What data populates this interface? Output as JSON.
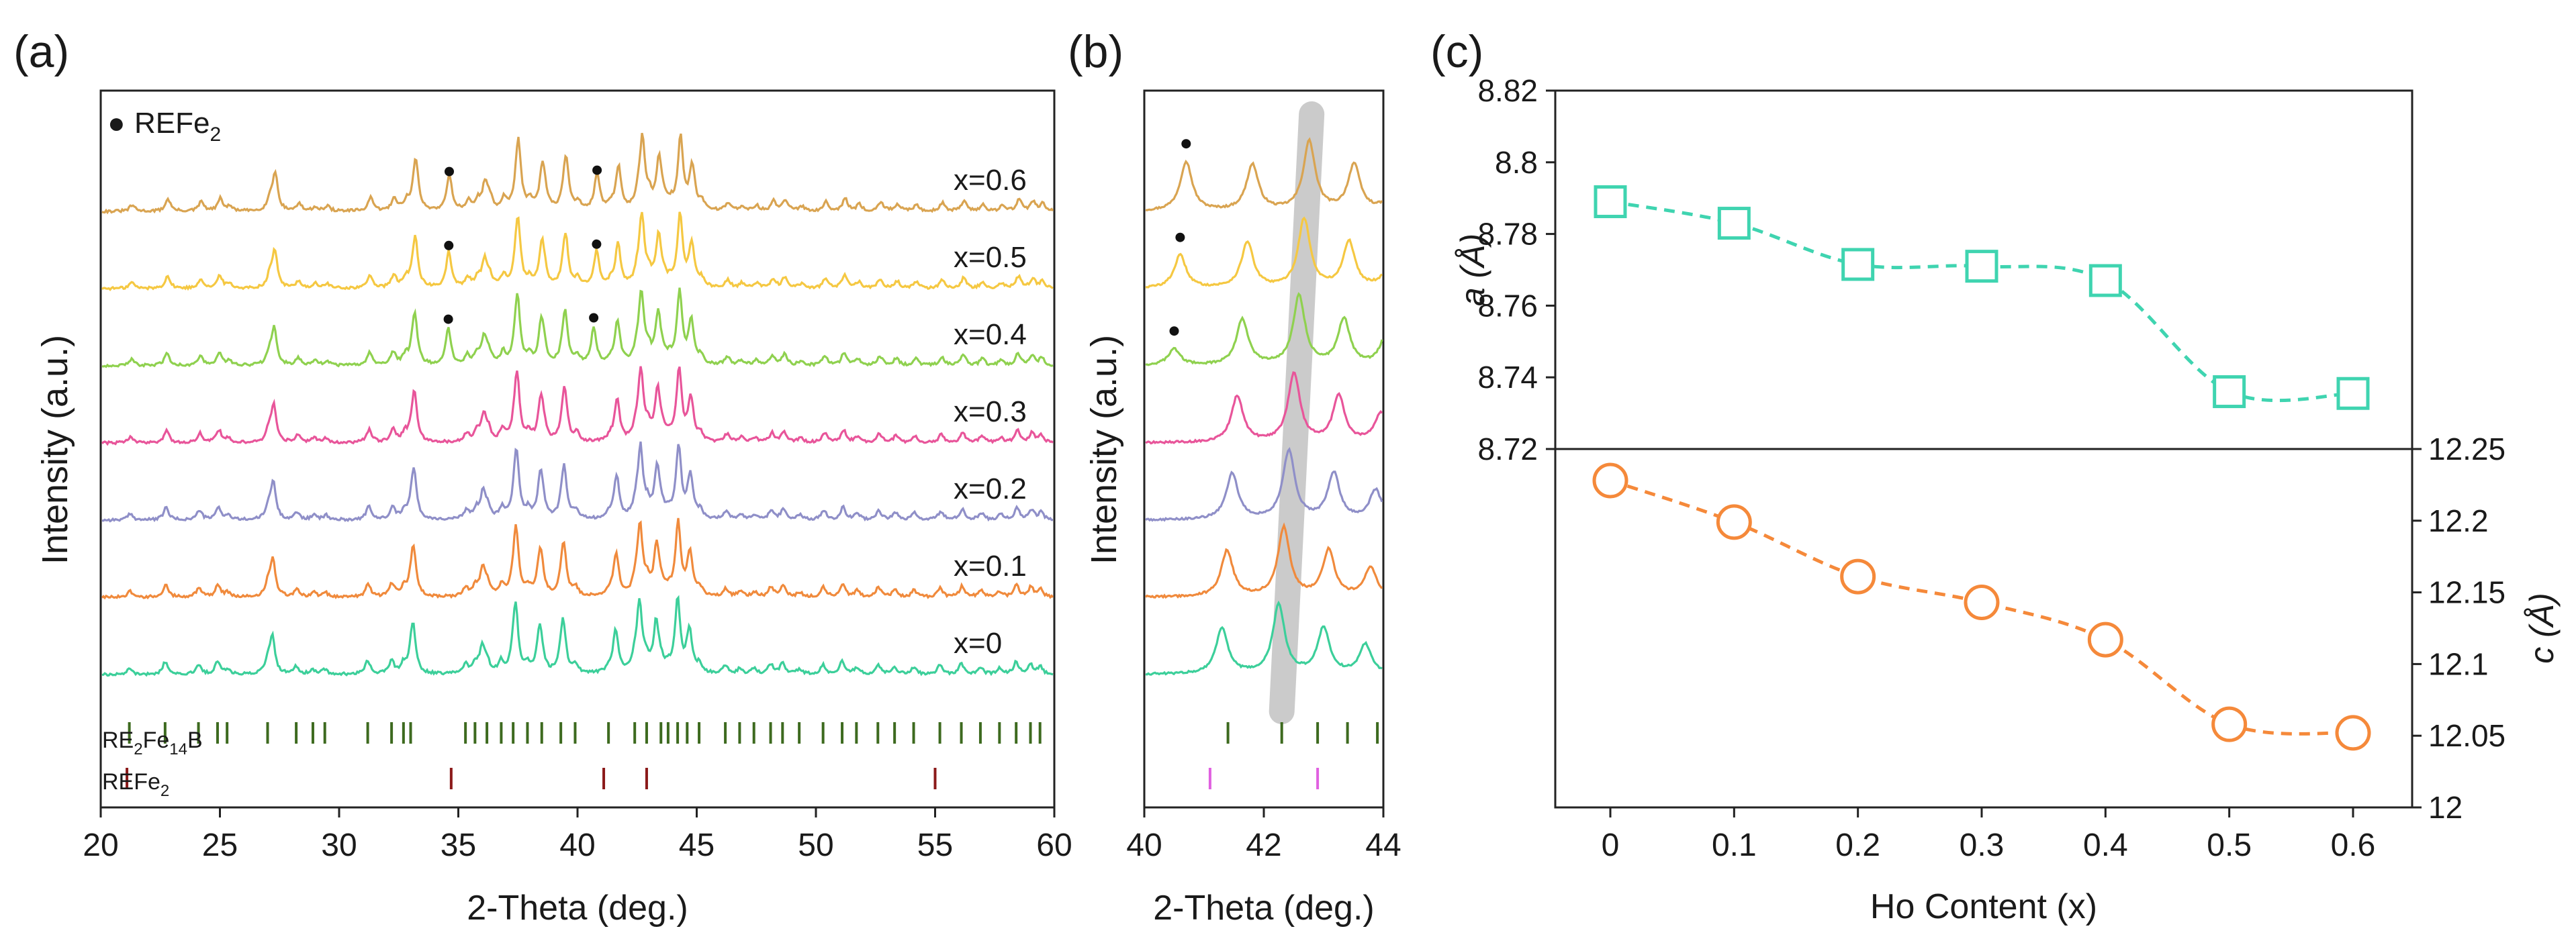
{
  "chart_data": [
    {
      "type": "line",
      "panel_label": "(a)",
      "xlabel": "2-Theta (deg.)",
      "ylabel": "Intensity (a.u.)",
      "xlim": [
        20,
        60
      ],
      "x_ticks": [
        "20",
        "25",
        "30",
        "35",
        "40",
        "45",
        "50",
        "55",
        "60"
      ],
      "legend": {
        "symbol": "●",
        "label": "REFe",
        "sub": "2"
      },
      "series": [
        {
          "name": "x=0.6",
          "color": "#d9a451",
          "offset": 6
        },
        {
          "name": "x=0.5",
          "color": "#f5c842",
          "offset": 5
        },
        {
          "name": "x=0.4",
          "color": "#8fd14f",
          "offset": 4
        },
        {
          "name": "x=0.3",
          "color": "#e8559a",
          "offset": 3
        },
        {
          "name": "x=0.2",
          "color": "#8f8fc8",
          "offset": 2
        },
        {
          "name": "x=0.1",
          "color": "#f08a3c",
          "offset": 1
        },
        {
          "name": "x=0",
          "color": "#3ccf9a",
          "offset": 0
        }
      ],
      "main_peaks": [
        [
          27.2,
          0.55
        ],
        [
          33.1,
          0.7
        ],
        [
          36.0,
          0.4
        ],
        [
          37.4,
          1.0
        ],
        [
          38.4,
          0.6
        ],
        [
          39.4,
          0.75
        ],
        [
          41.6,
          0.65
        ],
        [
          42.6,
          1.05
        ],
        [
          43.3,
          0.75
        ],
        [
          44.2,
          0.9
        ],
        [
          44.7,
          0.6
        ]
      ],
      "refe2_peaks": [
        {
          "series": "x=0.6",
          "positions": [
            34.5,
            40.7
          ]
        },
        {
          "series": "x=0.5",
          "positions": [
            34.5,
            40.7
          ]
        },
        {
          "series": "x=0.4",
          "positions": [
            34.5,
            40.6
          ]
        }
      ],
      "reference_phases": [
        {
          "name": "RE",
          "sub1": "2",
          "mid": "Fe",
          "sub2": "14",
          "tail": "B",
          "color": "#3d6a1f",
          "ticks": [
            21.2,
            22.7,
            24.1,
            24.9,
            25.3,
            27.0,
            28.2,
            28.9,
            29.4,
            31.2,
            32.2,
            32.7,
            33.0,
            35.3,
            35.7,
            36.2,
            36.8,
            37.3,
            37.9,
            38.5,
            39.3,
            39.9,
            41.3,
            42.4,
            42.9,
            43.5,
            43.8,
            44.2,
            44.6,
            45.1,
            46.2,
            46.8,
            47.4,
            48.1,
            48.6,
            49.3,
            50.3,
            51.1,
            51.7,
            52.6,
            53.3,
            54.1,
            55.2,
            56.1,
            56.9,
            57.7,
            58.4,
            59.0,
            59.4
          ]
        },
        {
          "name": "REFe",
          "sub1": "2",
          "mid": "",
          "sub2": "",
          "tail": "",
          "color": "#8b1a1a",
          "ticks": [
            21.1,
            34.7,
            41.1,
            42.9,
            55.0
          ]
        }
      ]
    },
    {
      "type": "line",
      "panel_label": "(b)",
      "xlabel": "2-Theta (deg.)",
      "ylabel": "Intensity (a.u.)",
      "xlim": [
        40,
        44
      ],
      "x_ticks": [
        "40",
        "42",
        "44"
      ],
      "highlight_band": {
        "from_x": 42.8,
        "to_x": 42.3,
        "color": "#c8c8c8"
      },
      "reference_ticks": [
        {
          "color": "#3d6a1f",
          "ticks": [
            41.4,
            42.3,
            42.9,
            43.4,
            43.9
          ]
        },
        {
          "color": "#e060e0",
          "ticks": [
            41.1,
            42.9
          ]
        }
      ]
    },
    {
      "type": "scatter",
      "panel_label": "(c)",
      "xlabel": "Ho Content (x)",
      "x_ticks": [
        "0",
        "0.1",
        "0.2",
        "0.3",
        "0.4",
        "0.5",
        "0.6"
      ],
      "x": [
        0,
        0.1,
        0.2,
        0.3,
        0.4,
        0.5,
        0.6
      ],
      "top": {
        "ylabel": "a (Å)",
        "ylim": [
          8.72,
          8.82
        ],
        "y_ticks": [
          "8.72",
          "8.74",
          "8.76",
          "8.78",
          "8.8",
          "8.82"
        ],
        "values": [
          8.789,
          8.783,
          8.7715,
          8.771,
          8.767,
          8.736,
          8.7355
        ],
        "marker": "square",
        "color": "#3fd4b0"
      },
      "bottom": {
        "ylabel": "c (Å)",
        "ylim": [
          12.0,
          12.25
        ],
        "y_ticks": [
          "12",
          "12.05",
          "12.1",
          "12.15",
          "12.2",
          "12.25"
        ],
        "values": [
          12.228,
          12.199,
          12.161,
          12.143,
          12.117,
          12.058,
          12.052
        ],
        "marker": "circle",
        "color": "#f5893a"
      }
    }
  ]
}
